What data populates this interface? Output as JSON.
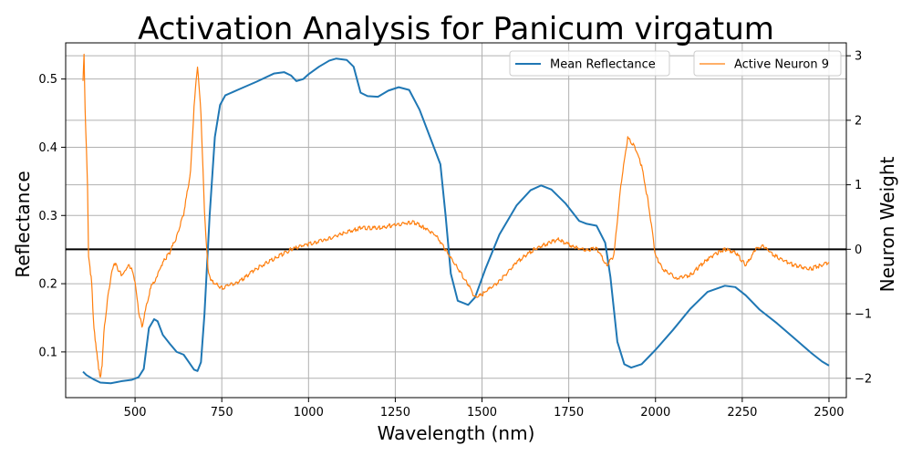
{
  "chart_data": {
    "type": "line",
    "title": "Activation Analysis for Panicum virgatum",
    "xlabel": "Wavelength (nm)",
    "ylabel_left": "Reflectance",
    "ylabel_right": "Neuron Weight",
    "xlim": [
      300,
      2550
    ],
    "ylim_left": [
      0.033,
      0.553
    ],
    "ylim_right": [
      -2.3,
      3.2
    ],
    "x_ticks": [
      500,
      750,
      1000,
      1250,
      1500,
      1750,
      2000,
      2250,
      2500
    ],
    "y_left_ticks": [
      0.1,
      0.2,
      0.3,
      0.4,
      0.5
    ],
    "y_right_ticks": [
      -2,
      -1,
      0,
      1,
      2,
      3
    ],
    "grid": true,
    "legend": [
      "Mean Reflectance",
      "Active Neuron 9"
    ],
    "legend_location": "top-right",
    "reference_line": {
      "axis": "right",
      "y": 0,
      "color": "#000000"
    },
    "series": [
      {
        "name": "Mean Reflectance",
        "axis": "left",
        "color": "#1f77b4",
        "points": [
          [
            350,
            0.071
          ],
          [
            360,
            0.066
          ],
          [
            380,
            0.06
          ],
          [
            400,
            0.055
          ],
          [
            430,
            0.054
          ],
          [
            460,
            0.057
          ],
          [
            490,
            0.059
          ],
          [
            510,
            0.063
          ],
          [
            525,
            0.075
          ],
          [
            540,
            0.135
          ],
          [
            555,
            0.148
          ],
          [
            565,
            0.145
          ],
          [
            580,
            0.125
          ],
          [
            600,
            0.112
          ],
          [
            620,
            0.1
          ],
          [
            640,
            0.096
          ],
          [
            655,
            0.085
          ],
          [
            670,
            0.074
          ],
          [
            680,
            0.072
          ],
          [
            690,
            0.085
          ],
          [
            700,
            0.155
          ],
          [
            715,
            0.3
          ],
          [
            730,
            0.415
          ],
          [
            745,
            0.462
          ],
          [
            760,
            0.476
          ],
          [
            800,
            0.485
          ],
          [
            850,
            0.496
          ],
          [
            900,
            0.508
          ],
          [
            930,
            0.51
          ],
          [
            950,
            0.505
          ],
          [
            965,
            0.497
          ],
          [
            985,
            0.5
          ],
          [
            1000,
            0.507
          ],
          [
            1030,
            0.518
          ],
          [
            1060,
            0.527
          ],
          [
            1080,
            0.53
          ],
          [
            1110,
            0.528
          ],
          [
            1130,
            0.518
          ],
          [
            1150,
            0.48
          ],
          [
            1170,
            0.475
          ],
          [
            1200,
            0.474
          ],
          [
            1230,
            0.483
          ],
          [
            1260,
            0.488
          ],
          [
            1290,
            0.484
          ],
          [
            1320,
            0.455
          ],
          [
            1350,
            0.415
          ],
          [
            1380,
            0.375
          ],
          [
            1395,
            0.3
          ],
          [
            1410,
            0.215
          ],
          [
            1430,
            0.175
          ],
          [
            1460,
            0.169
          ],
          [
            1480,
            0.18
          ],
          [
            1510,
            0.222
          ],
          [
            1550,
            0.272
          ],
          [
            1600,
            0.315
          ],
          [
            1640,
            0.337
          ],
          [
            1670,
            0.344
          ],
          [
            1700,
            0.338
          ],
          [
            1740,
            0.318
          ],
          [
            1780,
            0.292
          ],
          [
            1800,
            0.288
          ],
          [
            1830,
            0.285
          ],
          [
            1855,
            0.26
          ],
          [
            1870,
            0.21
          ],
          [
            1890,
            0.115
          ],
          [
            1910,
            0.082
          ],
          [
            1930,
            0.077
          ],
          [
            1960,
            0.082
          ],
          [
            2000,
            0.103
          ],
          [
            2050,
            0.132
          ],
          [
            2100,
            0.163
          ],
          [
            2150,
            0.188
          ],
          [
            2200,
            0.197
          ],
          [
            2230,
            0.195
          ],
          [
            2260,
            0.183
          ],
          [
            2300,
            0.162
          ],
          [
            2350,
            0.142
          ],
          [
            2400,
            0.12
          ],
          [
            2450,
            0.098
          ],
          [
            2480,
            0.086
          ],
          [
            2500,
            0.08
          ]
        ]
      },
      {
        "name": "Active Neuron 9",
        "axis": "right",
        "color": "#ff7f0e",
        "points": [
          [
            350,
            2.6
          ],
          [
            353,
            3.0
          ],
          [
            356,
            2.2
          ],
          [
            360,
            1.5
          ],
          [
            363,
            1.0
          ],
          [
            366,
            -0.1
          ],
          [
            370,
            -0.3
          ],
          [
            375,
            -0.5
          ],
          [
            380,
            -1.1
          ],
          [
            385,
            -1.4
          ],
          [
            390,
            -1.6
          ],
          [
            395,
            -1.85
          ],
          [
            400,
            -2.0
          ],
          [
            405,
            -1.8
          ],
          [
            410,
            -1.3
          ],
          [
            420,
            -0.8
          ],
          [
            430,
            -0.45
          ],
          [
            440,
            -0.2
          ],
          [
            450,
            -0.3
          ],
          [
            460,
            -0.4
          ],
          [
            470,
            -0.35
          ],
          [
            480,
            -0.25
          ],
          [
            490,
            -0.3
          ],
          [
            500,
            -0.5
          ],
          [
            510,
            -0.95
          ],
          [
            520,
            -1.2
          ],
          [
            530,
            -0.95
          ],
          [
            545,
            -0.6
          ],
          [
            560,
            -0.45
          ],
          [
            580,
            -0.2
          ],
          [
            600,
            -0.05
          ],
          [
            620,
            0.2
          ],
          [
            640,
            0.55
          ],
          [
            660,
            1.2
          ],
          [
            670,
            2.2
          ],
          [
            680,
            2.85
          ],
          [
            690,
            2.1
          ],
          [
            700,
            0.6
          ],
          [
            710,
            -0.3
          ],
          [
            720,
            -0.5
          ],
          [
            750,
            -0.6
          ],
          [
            800,
            -0.5
          ],
          [
            850,
            -0.3
          ],
          [
            900,
            -0.15
          ],
          [
            950,
            0.0
          ],
          [
            1000,
            0.08
          ],
          [
            1050,
            0.15
          ],
          [
            1100,
            0.25
          ],
          [
            1150,
            0.33
          ],
          [
            1200,
            0.33
          ],
          [
            1250,
            0.38
          ],
          [
            1300,
            0.42
          ],
          [
            1330,
            0.35
          ],
          [
            1370,
            0.2
          ],
          [
            1400,
            -0.05
          ],
          [
            1430,
            -0.3
          ],
          [
            1460,
            -0.55
          ],
          [
            1480,
            -0.75
          ],
          [
            1500,
            -0.7
          ],
          [
            1550,
            -0.5
          ],
          [
            1600,
            -0.2
          ],
          [
            1650,
            0.0
          ],
          [
            1700,
            0.12
          ],
          [
            1720,
            0.15
          ],
          [
            1760,
            0.05
          ],
          [
            1800,
            -0.02
          ],
          [
            1830,
            0.02
          ],
          [
            1860,
            -0.25
          ],
          [
            1880,
            -0.1
          ],
          [
            1900,
            1.0
          ],
          [
            1920,
            1.72
          ],
          [
            1940,
            1.6
          ],
          [
            1960,
            1.3
          ],
          [
            1980,
            0.7
          ],
          [
            2000,
            -0.1
          ],
          [
            2020,
            -0.3
          ],
          [
            2060,
            -0.45
          ],
          [
            2100,
            -0.4
          ],
          [
            2150,
            -0.15
          ],
          [
            2180,
            -0.05
          ],
          [
            2200,
            0.0
          ],
          [
            2230,
            -0.05
          ],
          [
            2260,
            -0.25
          ],
          [
            2290,
            0.0
          ],
          [
            2310,
            0.07
          ],
          [
            2330,
            -0.05
          ],
          [
            2360,
            -0.15
          ],
          [
            2400,
            -0.25
          ],
          [
            2450,
            -0.3
          ],
          [
            2500,
            -0.2
          ]
        ]
      }
    ]
  }
}
